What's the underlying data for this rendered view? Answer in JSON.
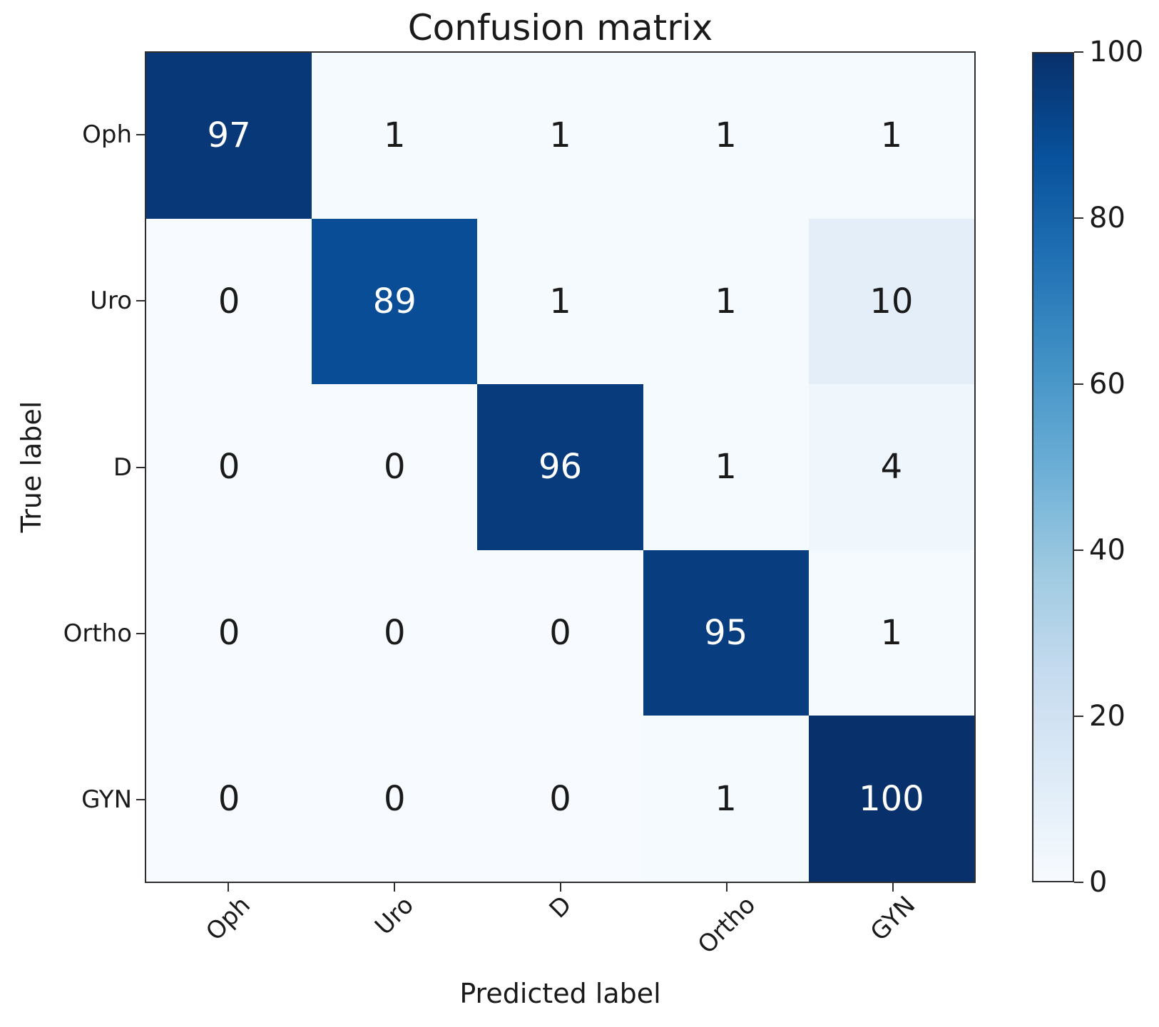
{
  "chart_data": {
    "type": "heatmap",
    "title": "Confusion matrix",
    "xlabel": "Predicted label",
    "ylabel": "True label",
    "x_tick_labels": [
      "Oph",
      "Uro",
      "D",
      "Ortho",
      "GYN"
    ],
    "y_tick_labels": [
      "Oph",
      "Uro",
      "D",
      "Ortho",
      "GYN"
    ],
    "values": [
      [
        97,
        1,
        1,
        1,
        1
      ],
      [
        0,
        89,
        1,
        1,
        10
      ],
      [
        0,
        0,
        96,
        1,
        4
      ],
      [
        0,
        0,
        0,
        95,
        1
      ],
      [
        0,
        0,
        0,
        1,
        100
      ]
    ],
    "vmin": 0,
    "vmax": 100,
    "colormap": "Blues",
    "colormap_stops": [
      {
        "pos": 0.0,
        "color": "#f7fbff"
      },
      {
        "pos": 0.125,
        "color": "#deebf7"
      },
      {
        "pos": 0.25,
        "color": "#c6dbef"
      },
      {
        "pos": 0.375,
        "color": "#9ecae1"
      },
      {
        "pos": 0.5,
        "color": "#6baed6"
      },
      {
        "pos": 0.625,
        "color": "#4292c6"
      },
      {
        "pos": 0.75,
        "color": "#2171b5"
      },
      {
        "pos": 0.875,
        "color": "#08519c"
      },
      {
        "pos": 1.0,
        "color": "#08306b"
      }
    ],
    "colorbar_ticks": [
      0,
      20,
      40,
      60,
      80,
      100
    ],
    "colorbar_position": "right",
    "grid": false,
    "cell_text_threshold": 50,
    "cell_text_color_high": "#ffffff",
    "cell_text_color_low": "#1a1a1a",
    "spine_color": "#2e2e2e"
  }
}
